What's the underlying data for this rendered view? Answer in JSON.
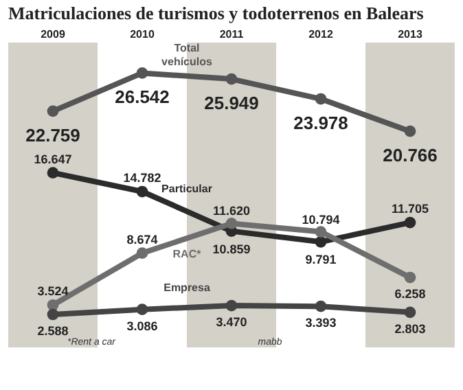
{
  "chart_data": {
    "type": "line",
    "title": "Matriculaciones de turismos y todoterrenos en Balears",
    "categories": [
      "2009",
      "2010",
      "2011",
      "2012",
      "2013"
    ],
    "series": [
      {
        "name": "Total\nvehículos",
        "color": "#555555",
        "values": [
          22759,
          26542,
          25949,
          23978,
          20766
        ],
        "value_labels": [
          "22.759",
          "26.542",
          "25.949",
          "23.978",
          "20.766"
        ]
      },
      {
        "name": "Particular",
        "color": "#2b2b2b",
        "values": [
          16647,
          14782,
          10859,
          9791,
          11705
        ],
        "value_labels": [
          "16.647",
          "14.782",
          "10.859",
          "9.791",
          "11.705"
        ]
      },
      {
        "name": "RAC*",
        "color": "#6e6e6e",
        "values": [
          3524,
          8674,
          11620,
          10794,
          6258
        ],
        "value_labels": [
          "3.524",
          "8.674",
          "11.620",
          "10.794",
          "6.258"
        ]
      },
      {
        "name": "Empresa",
        "color": "#444444",
        "values": [
          2588,
          3086,
          3470,
          3393,
          2803
        ],
        "value_labels": [
          "2.588",
          "3.086",
          "3.470",
          "3.393",
          "2.803"
        ]
      }
    ],
    "bands": [
      {
        "axis": "x",
        "from": "2009",
        "to": "2009",
        "color": "#d4d1c9"
      },
      {
        "axis": "x",
        "from": "2011",
        "to": "2011",
        "color": "#d4d1c9"
      },
      {
        "axis": "x",
        "from": "2013",
        "to": "2013",
        "color": "#d4d1c9"
      }
    ],
    "marker": "circle",
    "grid": false,
    "legend": false,
    "tick_labels": "x",
    "annotations": [
      "*Rent a car",
      "mabb"
    ]
  }
}
